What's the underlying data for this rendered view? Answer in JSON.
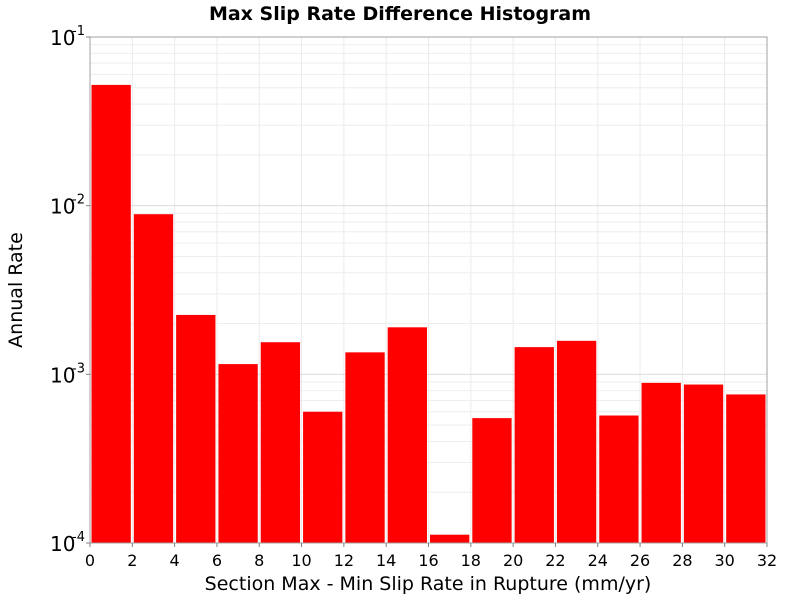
{
  "chart_data": {
    "type": "bar",
    "title": "Max Slip Rate Difference Histogram",
    "xlabel": "Section Max - Min Slip Rate in Rupture (mm/yr)",
    "ylabel": "Annual Rate",
    "x_bin_width": 2,
    "xlim": [
      0,
      32
    ],
    "ylim": [
      0.0001,
      0.1
    ],
    "y_scale": "log",
    "x_ticks": [
      "0",
      "2",
      "4",
      "6",
      "8",
      "10",
      "12",
      "14",
      "16",
      "18",
      "20",
      "22",
      "24",
      "26",
      "28",
      "30",
      "32"
    ],
    "y_ticks": [
      {
        "base": "10",
        "exp": "-4",
        "value": 0.0001
      },
      {
        "base": "10",
        "exp": "-3",
        "value": 0.001
      },
      {
        "base": "10",
        "exp": "-2",
        "value": 0.01
      },
      {
        "base": "10",
        "exp": "-1",
        "value": 0.1
      }
    ],
    "grid": true,
    "bar_color": "#ff0000",
    "bins": [
      {
        "x_start": 0,
        "value": 0.052
      },
      {
        "x_start": 2,
        "value": 0.0089
      },
      {
        "x_start": 4,
        "value": 0.00225
      },
      {
        "x_start": 6,
        "value": 0.00115
      },
      {
        "x_start": 8,
        "value": 0.00155
      },
      {
        "x_start": 10,
        "value": 0.0006
      },
      {
        "x_start": 12,
        "value": 0.00135
      },
      {
        "x_start": 14,
        "value": 0.0019
      },
      {
        "x_start": 16,
        "value": 0.000112
      },
      {
        "x_start": 18,
        "value": 0.00055
      },
      {
        "x_start": 20,
        "value": 0.00145
      },
      {
        "x_start": 22,
        "value": 0.00158
      },
      {
        "x_start": 24,
        "value": 0.00057
      },
      {
        "x_start": 26,
        "value": 0.00089
      },
      {
        "x_start": 28,
        "value": 0.00087
      },
      {
        "x_start": 30,
        "value": 0.00076
      }
    ]
  }
}
